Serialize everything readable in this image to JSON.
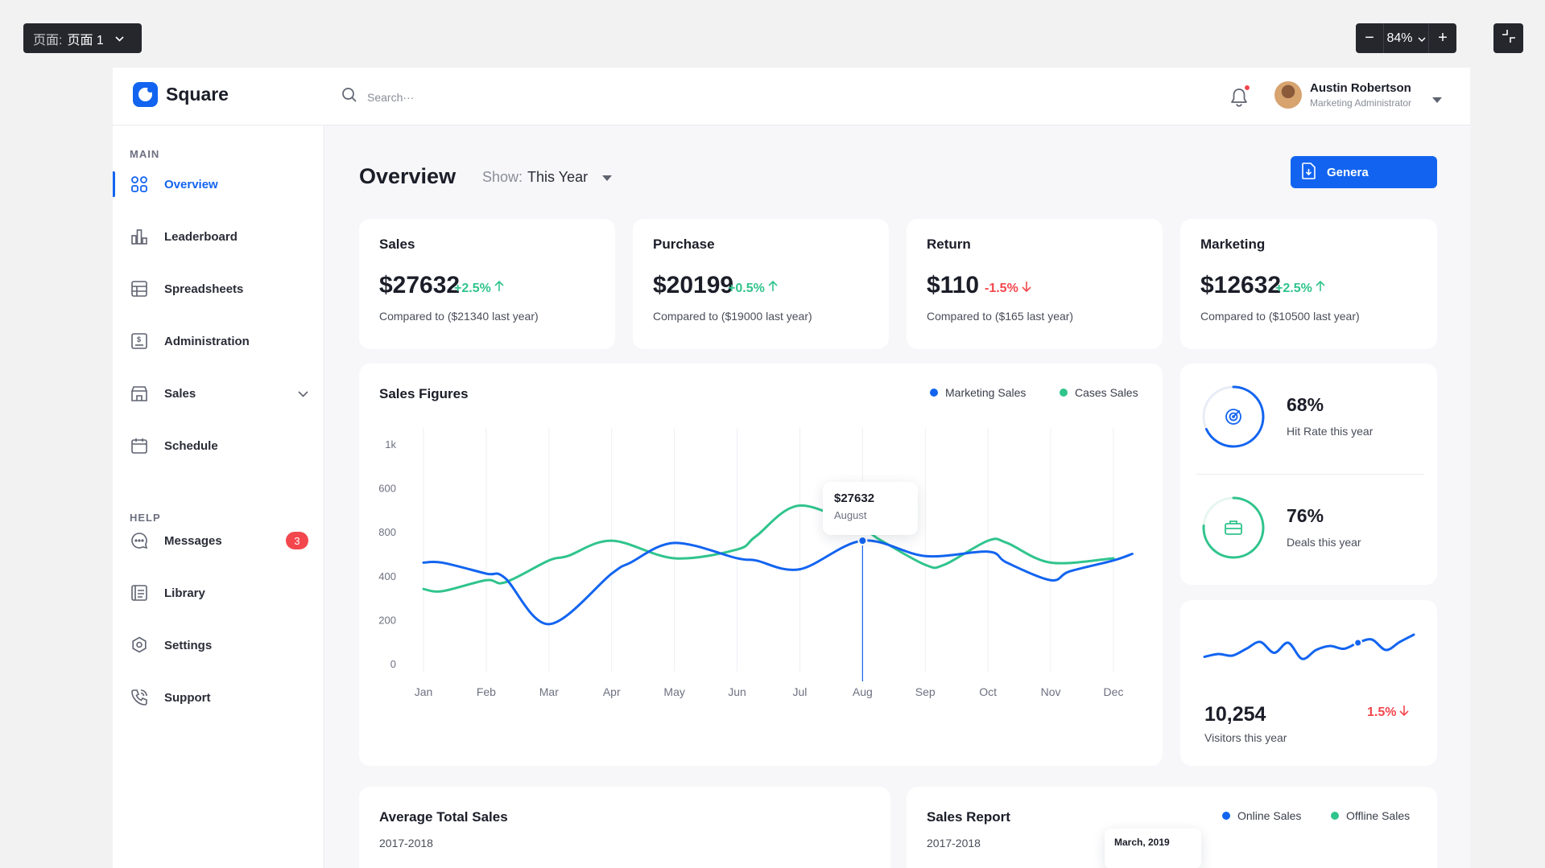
{
  "viewer": {
    "page_prefix": "页面:",
    "page_name": "页面 1",
    "zoom": "84%",
    "zoom_out": "−",
    "zoom_in": "+"
  },
  "app": {
    "brand": "Square",
    "search_placeholder": "Search···",
    "user": {
      "name": "Austin Robertson",
      "role": "Marketing Administrator"
    }
  },
  "sidebar": {
    "main_label": "MAIN",
    "help_label": "HELP",
    "main_items": [
      {
        "label": "Overview",
        "icon": "grid-icon"
      },
      {
        "label": "Leaderboard",
        "icon": "bar-chart-icon"
      },
      {
        "label": "Spreadsheets",
        "icon": "table-icon"
      },
      {
        "label": "Administration",
        "icon": "dollar-document-icon"
      },
      {
        "label": "Sales",
        "icon": "store-icon"
      },
      {
        "label": "Schedule",
        "icon": "calendar-icon"
      }
    ],
    "help_items": [
      {
        "label": "Messages",
        "icon": "chat-icon",
        "badge": "3"
      },
      {
        "label": "Library",
        "icon": "library-icon"
      },
      {
        "label": "Settings",
        "icon": "gear-icon"
      },
      {
        "label": "Support",
        "icon": "phone-icon"
      }
    ]
  },
  "main": {
    "title": "Overview",
    "show_label": "Show:",
    "show_value": "This Year",
    "generate_label": "Genera"
  },
  "stats": [
    {
      "title": "Sales",
      "value": "$27632",
      "change": "+2.5%",
      "direction": "up",
      "compare": "Compared to ($21340 last year)"
    },
    {
      "title": "Purchase",
      "value": "$20199",
      "change": "+0.5%",
      "direction": "up",
      "compare": "Compared to ($19000 last year)"
    },
    {
      "title": "Return",
      "value": "$110",
      "change": "-1.5%",
      "direction": "down",
      "compare": "Compared to ($165 last year)"
    },
    {
      "title": "Marketing",
      "value": "$12632",
      "change": "+2.5%",
      "direction": "up",
      "compare": "Compared to ($10500 last year)"
    }
  ],
  "sales_figures": {
    "title": "Sales Figures",
    "tooltip": {
      "value": "$27632",
      "label": "August"
    }
  },
  "chart_data": {
    "type": "line",
    "categories": [
      "Jan",
      "Feb",
      "Mar",
      "Apr",
      "May",
      "Jun",
      "Jul",
      "Aug",
      "Sep",
      "Oct",
      "Nov",
      "Dec"
    ],
    "y_ticks": [
      "0",
      "200",
      "400",
      "800",
      "600",
      "1k"
    ],
    "ylim": [
      0,
      1000
    ],
    "grid": "vertical",
    "legend": "top-right",
    "series": [
      {
        "name": "Marketing Sales",
        "color": "#1264f0",
        "x": [
          "Jan",
          "Jan",
          "Feb",
          "Feb",
          "Mar",
          "Apr",
          "Apr",
          "May",
          "Jun",
          "Jun",
          "Jul",
          "Aug",
          "Sep",
          "Oct",
          "Oct",
          "Nov",
          "Nov",
          "Dec",
          "Dec"
        ],
        "values": [
          460,
          460,
          410,
          390,
          180,
          410,
          460,
          550,
          480,
          470,
          430,
          560,
          490,
          510,
          460,
          380,
          420,
          470,
          500
        ]
      },
      {
        "name": "Cases Sales",
        "color": "#30c48d",
        "x": [
          "Jan",
          "Jan",
          "Feb",
          "Feb",
          "Mar",
          "Mar",
          "Apr",
          "May",
          "Jun",
          "Jun",
          "Jul",
          "Aug",
          "Aug",
          "Sep",
          "Sep",
          "Oct",
          "Oct",
          "Nov",
          "Dec"
        ],
        "values": [
          340,
          330,
          380,
          370,
          470,
          490,
          560,
          480,
          520,
          580,
          720,
          610,
          560,
          450,
          450,
          560,
          550,
          460,
          480
        ]
      }
    ],
    "highlight": {
      "category": "Aug",
      "value": 560
    }
  },
  "rings": [
    {
      "value": "68%",
      "label": "Hit Rate this year",
      "percent": 68,
      "color": "#1264f0",
      "icon": "target-icon"
    },
    {
      "value": "76%",
      "label": "Deals this year",
      "percent": 76,
      "color": "#30c48d",
      "icon": "briefcase-icon"
    }
  ],
  "visitors": {
    "value": "10,254",
    "label": "Visitors this year",
    "change": "1.5%",
    "direction": "down",
    "sparkline": [
      0.35,
      0.42,
      0.38,
      0.55,
      0.72,
      0.45,
      0.7,
      0.3,
      0.52,
      0.62,
      0.55,
      0.7,
      0.78,
      0.52,
      0.72,
      0.9
    ]
  },
  "avg_total_sales": {
    "title": "Average Total Sales",
    "period": "2017-2018"
  },
  "sales_report": {
    "title": "Sales Report",
    "period": "2017-2018",
    "legend": [
      "Online Sales",
      "Offline Sales"
    ],
    "popup": "March, 2019"
  },
  "colors": {
    "accent": "#1264f0",
    "positive": "#30c48d",
    "negative": "#f3474e"
  }
}
